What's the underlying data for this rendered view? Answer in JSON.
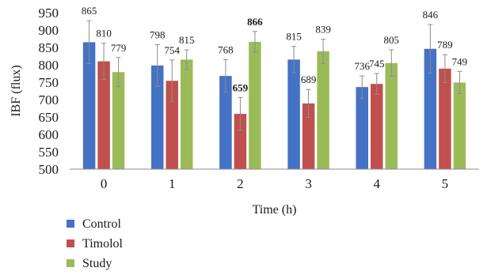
{
  "chart_data": {
    "type": "bar",
    "title": "",
    "xlabel": "Time (h)",
    "ylabel": "IBF (flux)",
    "ylim": [
      500,
      950
    ],
    "yticks": [
      500,
      550,
      600,
      650,
      700,
      750,
      800,
      850,
      900,
      950
    ],
    "categories": [
      "0",
      "1",
      "2",
      "3",
      "4",
      "5"
    ],
    "grid": false,
    "legend_position": "bottom-left",
    "series": [
      {
        "name": "Control",
        "color": "#4472c4",
        "values": [
          865,
          798,
          768,
          815,
          736,
          846
        ],
        "errors": [
          62,
          60,
          47,
          38,
          32,
          70
        ],
        "labels": [
          "865",
          "798",
          "768",
          "815",
          "736",
          "846"
        ],
        "bold": [
          false,
          false,
          false,
          false,
          false,
          false
        ]
      },
      {
        "name": "Timolol",
        "color": "#c0504d",
        "values": [
          810,
          754,
          659,
          689,
          745,
          789
        ],
        "errors": [
          52,
          60,
          47,
          40,
          30,
          40
        ],
        "labels": [
          "810",
          "754",
          "659",
          "689",
          "745",
          "789"
        ],
        "bold": [
          false,
          false,
          true,
          false,
          false,
          false
        ]
      },
      {
        "name": "Study",
        "color": "#9bbb59",
        "values": [
          779,
          815,
          866,
          839,
          805,
          749
        ],
        "errors": [
          42,
          28,
          30,
          35,
          38,
          32
        ],
        "labels": [
          "779",
          "815",
          "866",
          "839",
          "805",
          "749"
        ],
        "bold": [
          false,
          false,
          true,
          false,
          false,
          false
        ]
      }
    ]
  }
}
